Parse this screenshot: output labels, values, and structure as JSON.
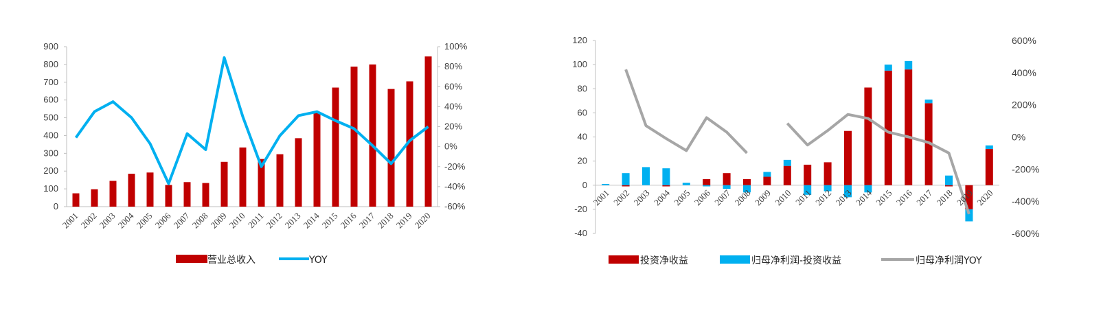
{
  "chart_data": [
    {
      "type": "bar",
      "categories": [
        "2001",
        "2002",
        "2003",
        "2004",
        "2005",
        "2006",
        "2007",
        "2008",
        "2009",
        "2010",
        "2011",
        "2012",
        "2013",
        "2014",
        "2015",
        "2016",
        "2017",
        "2018",
        "2019",
        "2020"
      ],
      "series": [
        {
          "name": "营业总收入",
          "type": "bar",
          "axis": "left",
          "color": "#C00000",
          "values": [
            75,
            98,
            145,
            185,
            192,
            122,
            138,
            133,
            252,
            333,
            268,
            295,
            385,
            530,
            670,
            788,
            800,
            662,
            705,
            845
          ]
        },
        {
          "name": "YOY",
          "type": "line",
          "axis": "right",
          "color": "#00B0F0",
          "values": [
            9,
            35,
            45,
            29,
            3,
            -37,
            13,
            -3,
            89,
            30,
            -20,
            11,
            31,
            35,
            26,
            18,
            1,
            -17,
            6,
            20
          ]
        }
      ],
      "ylim": [
        0,
        900
      ],
      "yticks": [
        0,
        100,
        200,
        300,
        400,
        500,
        600,
        700,
        800,
        900
      ],
      "y2lim": [
        -60,
        100
      ],
      "y2ticks": [
        "-60%",
        "-40%",
        "-20%",
        "0%",
        "20%",
        "40%",
        "60%",
        "80%",
        "100%"
      ],
      "legend_position": "bottom"
    },
    {
      "type": "bar",
      "categories": [
        "2001",
        "2002",
        "2003",
        "2004",
        "2005",
        "2006",
        "2007",
        "2008",
        "2009",
        "2010",
        "2011",
        "2012",
        "2013",
        "2014",
        "2015",
        "2016",
        "2017",
        "2018",
        "2019",
        "2020"
      ],
      "series": [
        {
          "name": "投资净收益",
          "type": "bar",
          "axis": "left",
          "color": "#C00000",
          "values": [
            0,
            -1,
            0,
            -1,
            0,
            5,
            10,
            5,
            7,
            16,
            17,
            19,
            45,
            81,
            95,
            96,
            68,
            -1,
            -20,
            30
          ]
        },
        {
          "name": "归母净利润-投资收益",
          "type": "bar",
          "axis": "left",
          "color": "#00B0F0",
          "values": [
            1,
            10,
            15,
            14,
            2,
            -1,
            -3,
            -6,
            4,
            5,
            -8,
            -5,
            -10,
            -6,
            5,
            7,
            3,
            8,
            -10,
            3
          ]
        },
        {
          "name": "归母净利润YOY",
          "type": "line",
          "axis": "right",
          "color": "#A6A6A6",
          "values": [
            null,
            420,
            70,
            null,
            -85,
            120,
            30,
            -100,
            null,
            85,
            -50,
            40,
            140,
            115,
            30,
            0,
            -35,
            -100,
            -480,
            null
          ],
          "segments": [
            [
              1,
              2
            ],
            [
              2,
              3
            ],
            [
              3,
              4
            ],
            [
              4,
              5
            ],
            [
              5,
              6
            ],
            [
              6,
              7
            ],
            [
              9,
              10
            ],
            [
              10,
              11
            ],
            [
              11,
              12
            ],
            [
              12,
              13
            ],
            [
              13,
              14
            ],
            [
              14,
              15
            ],
            [
              15,
              16
            ],
            [
              16,
              17
            ],
            [
              17,
              18
            ]
          ],
          "path_values": [
            [
              1,
              420
            ],
            [
              2,
              70
            ],
            [
              3,
              -10
            ],
            [
              4,
              -85
            ],
            [
              5,
              120
            ],
            [
              6,
              30
            ],
            [
              7,
              -100
            ],
            [
              9,
              85
            ],
            [
              10,
              -50
            ],
            [
              11,
              40
            ],
            [
              12,
              140
            ],
            [
              13,
              115
            ],
            [
              14,
              30
            ],
            [
              15,
              0
            ],
            [
              16,
              -35
            ],
            [
              17,
              -100
            ],
            [
              18,
              -480
            ]
          ]
        }
      ],
      "ylim": [
        -40,
        120
      ],
      "yticks": [
        -40,
        -20,
        0,
        20,
        40,
        60,
        80,
        100,
        120
      ],
      "y2lim": [
        -600,
        600
      ],
      "y2ticks": [
        "-600%",
        "-400%",
        "-200%",
        "0%",
        "200%",
        "400%",
        "600%"
      ],
      "legend_position": "bottom"
    }
  ]
}
